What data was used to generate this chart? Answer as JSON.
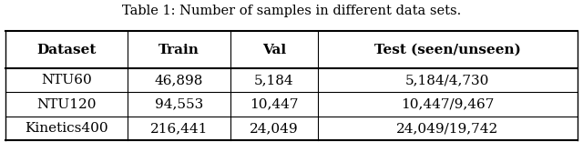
{
  "title": "Table 1: Number of samples in different data sets.",
  "headers": [
    "Dataset",
    "Train",
    "Val",
    "Test (seen/unseen)"
  ],
  "rows": [
    [
      "NTU60",
      "46,898",
      "5,184",
      "5,184/4,730"
    ],
    [
      "NTU120",
      "94,553",
      "10,447",
      "10,447/9,467"
    ],
    [
      "Kinetics400",
      "216,441",
      "24,049",
      "24,049/19,742"
    ]
  ],
  "background_color": "#ffffff",
  "title_fontsize": 10.5,
  "header_fontsize": 11,
  "row_fontsize": 11
}
